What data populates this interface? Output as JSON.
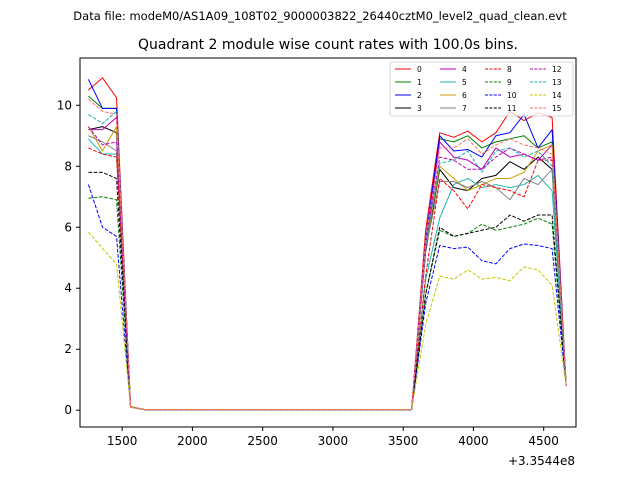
{
  "chart_data": {
    "type": "line",
    "suptitle": "Data file: modeM0/AS1A09_108T02_9000003822_26440cztM0_level2_quad_clean.evt",
    "title": "Quadrant 2 module wise count rates with 100.0s bins.",
    "xlabel": "",
    "ylabel": "",
    "x_offset_text": "+3.3544e8",
    "xlim": [
      1200,
      4730
    ],
    "ylim": [
      -0.55,
      11.55
    ],
    "x_ticks": [
      1500,
      2000,
      2500,
      3000,
      3500,
      4000,
      4500
    ],
    "y_ticks": [
      0,
      2,
      4,
      6,
      8,
      10
    ],
    "grid": false,
    "legend_position": "top-right",
    "legend_columns": 4,
    "x": [
      1260,
      1360,
      1460,
      1560,
      1660,
      1760,
      1860,
      1960,
      2060,
      2160,
      2260,
      2360,
      2460,
      2560,
      2660,
      2760,
      2860,
      2960,
      3060,
      3160,
      3260,
      3360,
      3460,
      3560,
      3660,
      3760,
      3860,
      3960,
      4060,
      4160,
      4260,
      4360,
      4460,
      4560,
      4660
    ],
    "series": [
      {
        "name": "0",
        "color": "#ff0000",
        "dash": "solid",
        "values": [
          10.5,
          10.9,
          10.25,
          0.12,
          0.02,
          0.02,
          0.02,
          0.02,
          0.02,
          0.02,
          0.02,
          0.02,
          0.02,
          0.02,
          0.02,
          0.02,
          0.02,
          0.02,
          0.02,
          0.02,
          0.02,
          0.02,
          0.02,
          0.02,
          5.9,
          9.1,
          8.95,
          9.15,
          8.8,
          9.1,
          9.8,
          9.5,
          9.75,
          9.6,
          0.8
        ]
      },
      {
        "name": "1",
        "color": "#008000",
        "dash": "solid",
        "values": [
          10.3,
          9.9,
          9.9,
          0.1,
          0.02,
          0.02,
          0.02,
          0.02,
          0.02,
          0.02,
          0.02,
          0.02,
          0.02,
          0.02,
          0.02,
          0.02,
          0.02,
          0.02,
          0.02,
          0.02,
          0.02,
          0.02,
          0.02,
          0.02,
          5.4,
          8.9,
          8.8,
          9.0,
          8.6,
          8.8,
          8.9,
          9.0,
          8.6,
          8.8,
          0.8
        ]
      },
      {
        "name": "2",
        "color": "#0000ff",
        "dash": "solid",
        "values": [
          10.85,
          9.9,
          9.9,
          0.1,
          0.02,
          0.02,
          0.02,
          0.02,
          0.02,
          0.02,
          0.02,
          0.02,
          0.02,
          0.02,
          0.02,
          0.02,
          0.02,
          0.02,
          0.02,
          0.02,
          0.02,
          0.02,
          0.02,
          0.02,
          5.6,
          9.0,
          8.5,
          8.55,
          8.3,
          9.0,
          9.1,
          9.7,
          8.6,
          9.2,
          0.8
        ]
      },
      {
        "name": "3",
        "color": "#000000",
        "dash": "solid",
        "values": [
          9.2,
          9.3,
          9.1,
          0.1,
          0.02,
          0.02,
          0.02,
          0.02,
          0.02,
          0.02,
          0.02,
          0.02,
          0.02,
          0.02,
          0.02,
          0.02,
          0.02,
          0.02,
          0.02,
          0.02,
          0.02,
          0.02,
          0.02,
          0.02,
          5.2,
          7.9,
          7.3,
          7.2,
          7.6,
          7.7,
          8.15,
          7.9,
          8.3,
          7.9,
          0.8
        ]
      },
      {
        "name": "4",
        "color": "#bf00bf",
        "dash": "solid",
        "values": [
          9.2,
          9.2,
          9.6,
          0.1,
          0.02,
          0.02,
          0.02,
          0.02,
          0.02,
          0.02,
          0.02,
          0.02,
          0.02,
          0.02,
          0.02,
          0.02,
          0.02,
          0.02,
          0.02,
          0.02,
          0.02,
          0.02,
          0.02,
          0.02,
          5.3,
          8.8,
          8.3,
          8.2,
          7.9,
          8.6,
          8.3,
          8.4,
          8.2,
          8.7,
          0.8
        ]
      },
      {
        "name": "5",
        "color": "#20b2aa",
        "dash": "solid",
        "values": [
          8.9,
          8.4,
          8.4,
          0.1,
          0.02,
          0.02,
          0.02,
          0.02,
          0.02,
          0.02,
          0.02,
          0.02,
          0.02,
          0.02,
          0.02,
          0.02,
          0.02,
          0.02,
          0.02,
          0.02,
          0.02,
          0.02,
          0.02,
          0.02,
          4.3,
          6.3,
          7.4,
          7.6,
          7.3,
          7.4,
          7.3,
          7.4,
          7.7,
          7.2,
          0.8
        ]
      },
      {
        "name": "6",
        "color": "#c8a000",
        "dash": "solid",
        "values": [
          9.3,
          8.5,
          9.3,
          0.1,
          0.02,
          0.02,
          0.02,
          0.02,
          0.02,
          0.02,
          0.02,
          0.02,
          0.02,
          0.02,
          0.02,
          0.02,
          0.02,
          0.02,
          0.02,
          0.02,
          0.02,
          0.02,
          0.02,
          0.02,
          5.3,
          8.0,
          7.6,
          7.2,
          7.4,
          7.6,
          7.6,
          7.8,
          8.5,
          8.7,
          0.8
        ]
      },
      {
        "name": "7",
        "color": "#808080",
        "dash": "solid",
        "values": [
          9.0,
          8.8,
          8.5,
          0.1,
          0.02,
          0.02,
          0.02,
          0.02,
          0.02,
          0.02,
          0.02,
          0.02,
          0.02,
          0.02,
          0.02,
          0.02,
          0.02,
          0.02,
          0.02,
          0.02,
          0.02,
          0.02,
          0.02,
          0.02,
          5.3,
          7.5,
          7.5,
          7.3,
          7.5,
          7.3,
          6.9,
          7.6,
          7.4,
          7.9,
          0.8
        ]
      },
      {
        "name": "8",
        "color": "#ff0000",
        "dash": "dashed",
        "values": [
          8.6,
          8.4,
          8.3,
          0.1,
          0.02,
          0.02,
          0.02,
          0.02,
          0.02,
          0.02,
          0.02,
          0.02,
          0.02,
          0.02,
          0.02,
          0.02,
          0.02,
          0.02,
          0.02,
          0.02,
          0.02,
          0.02,
          0.02,
          0.02,
          4.4,
          7.6,
          7.2,
          6.6,
          7.4,
          7.3,
          7.2,
          7.0,
          8.2,
          8.2,
          0.8
        ]
      },
      {
        "name": "9",
        "color": "#008000",
        "dash": "dashed",
        "values": [
          6.95,
          7.0,
          6.9,
          0.1,
          0.02,
          0.02,
          0.02,
          0.02,
          0.02,
          0.02,
          0.02,
          0.02,
          0.02,
          0.02,
          0.02,
          0.02,
          0.02,
          0.02,
          0.02,
          0.02,
          0.02,
          0.02,
          0.02,
          0.02,
          3.8,
          5.9,
          5.7,
          5.8,
          6.1,
          5.9,
          6.0,
          6.1,
          6.3,
          6.1,
          0.8
        ]
      },
      {
        "name": "10",
        "color": "#0000ff",
        "dash": "dashed",
        "values": [
          7.4,
          6.0,
          5.7,
          0.1,
          0.02,
          0.02,
          0.02,
          0.02,
          0.02,
          0.02,
          0.02,
          0.02,
          0.02,
          0.02,
          0.02,
          0.02,
          0.02,
          0.02,
          0.02,
          0.02,
          0.02,
          0.02,
          0.02,
          0.02,
          3.5,
          5.4,
          5.3,
          5.35,
          4.9,
          4.8,
          5.3,
          5.45,
          5.4,
          5.3,
          0.8
        ]
      },
      {
        "name": "11",
        "color": "#000000",
        "dash": "dashed",
        "values": [
          7.8,
          7.8,
          7.6,
          0.1,
          0.02,
          0.02,
          0.02,
          0.02,
          0.02,
          0.02,
          0.02,
          0.02,
          0.02,
          0.02,
          0.02,
          0.02,
          0.02,
          0.02,
          0.02,
          0.02,
          0.02,
          0.02,
          0.02,
          0.02,
          3.8,
          6.0,
          5.7,
          5.8,
          5.9,
          6.0,
          6.4,
          6.2,
          6.4,
          6.4,
          0.8
        ]
      },
      {
        "name": "12",
        "color": "#bf00bf",
        "dash": "dashed",
        "values": [
          9.3,
          8.7,
          8.8,
          0.1,
          0.02,
          0.02,
          0.02,
          0.02,
          0.02,
          0.02,
          0.02,
          0.02,
          0.02,
          0.02,
          0.02,
          0.02,
          0.02,
          0.02,
          0.02,
          0.02,
          0.02,
          0.02,
          0.02,
          0.02,
          5.4,
          8.3,
          8.2,
          7.9,
          7.9,
          8.3,
          8.6,
          8.4,
          8.2,
          8.3,
          0.8
        ]
      },
      {
        "name": "13",
        "color": "#20b2aa",
        "dash": "dashed",
        "values": [
          9.7,
          9.4,
          9.8,
          0.1,
          0.02,
          0.02,
          0.02,
          0.02,
          0.02,
          0.02,
          0.02,
          0.02,
          0.02,
          0.02,
          0.02,
          0.02,
          0.02,
          0.02,
          0.02,
          0.02,
          0.02,
          0.02,
          0.02,
          0.02,
          5.4,
          8.1,
          8.2,
          8.5,
          7.8,
          8.5,
          8.6,
          8.3,
          8.5,
          8.0,
          0.8
        ]
      },
      {
        "name": "14",
        "color": "#c8c800",
        "dash": "dashed",
        "values": [
          5.85,
          5.3,
          4.8,
          0.1,
          0.02,
          0.02,
          0.02,
          0.02,
          0.02,
          0.02,
          0.02,
          0.02,
          0.02,
          0.02,
          0.02,
          0.02,
          0.02,
          0.02,
          0.02,
          0.02,
          0.02,
          0.02,
          0.02,
          0.02,
          2.8,
          4.4,
          4.3,
          4.6,
          4.3,
          4.35,
          4.25,
          4.7,
          4.6,
          4.1,
          0.8
        ]
      },
      {
        "name": "15",
        "color": "#ff7070",
        "dash": "dashed",
        "values": [
          10.2,
          9.8,
          9.7,
          0.1,
          0.02,
          0.02,
          0.02,
          0.02,
          0.02,
          0.02,
          0.02,
          0.02,
          0.02,
          0.02,
          0.02,
          0.02,
          0.02,
          0.02,
          0.02,
          0.02,
          0.02,
          0.02,
          0.02,
          0.02,
          5.6,
          8.6,
          8.6,
          8.9,
          8.4,
          8.7,
          8.9,
          8.7,
          8.6,
          8.4,
          0.8
        ]
      }
    ]
  }
}
